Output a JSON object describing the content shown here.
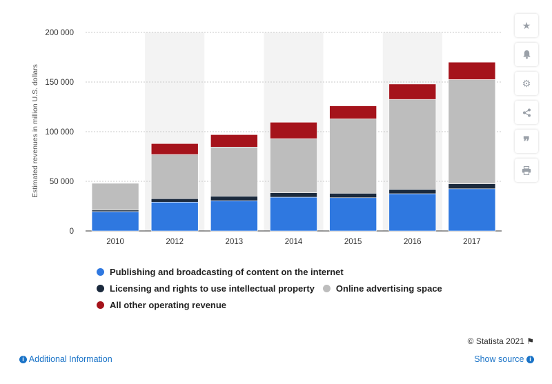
{
  "chart_data": {
    "type": "bar",
    "stacked": true,
    "categories": [
      "2010",
      "2012",
      "2013",
      "2014",
      "2015",
      "2016",
      "2017"
    ],
    "series": [
      {
        "name": "Publishing and broadcasting of content on the internet",
        "color": "#2f78e0",
        "values": [
          19500,
          29000,
          30500,
          34000,
          33500,
          37500,
          42500
        ]
      },
      {
        "name": "Licensing and rights to use intellectual property",
        "color": "#1b2a3d",
        "values": [
          1500,
          3500,
          4500,
          4500,
          4500,
          4500,
          5000
        ]
      },
      {
        "name": "Online advertising space",
        "color": "#bdbdbd",
        "values": [
          27000,
          44500,
          49500,
          54500,
          75000,
          90500,
          105000
        ]
      },
      {
        "name": "All other operating revenue",
        "color": "#a5131b",
        "values": [
          0,
          11000,
          12500,
          16500,
          13000,
          15500,
          17500
        ]
      }
    ],
    "ylabel": "Estimated revenues in million U.S. dollars",
    "ylim": [
      0,
      200000
    ],
    "yticks": [
      0,
      50000,
      100000,
      150000,
      200000
    ],
    "ytick_labels": [
      "0",
      "50 000",
      "100 000",
      "150 000",
      "200 000"
    ],
    "grid": true,
    "legend_position": "bottom"
  },
  "legend": {
    "row1": [
      "Publishing and broadcasting of content on the internet"
    ],
    "row2": [
      "Licensing and rights to use intellectual property",
      "Online advertising space"
    ],
    "row3": [
      "All other operating revenue"
    ]
  },
  "toolbar": {
    "icons": [
      "star-icon",
      "bell-icon",
      "gear-icon",
      "share-icon",
      "quote-icon",
      "print-icon"
    ]
  },
  "footer": {
    "credit": "© Statista 2021",
    "additional_info": "Additional Information",
    "show_source": "Show source"
  }
}
